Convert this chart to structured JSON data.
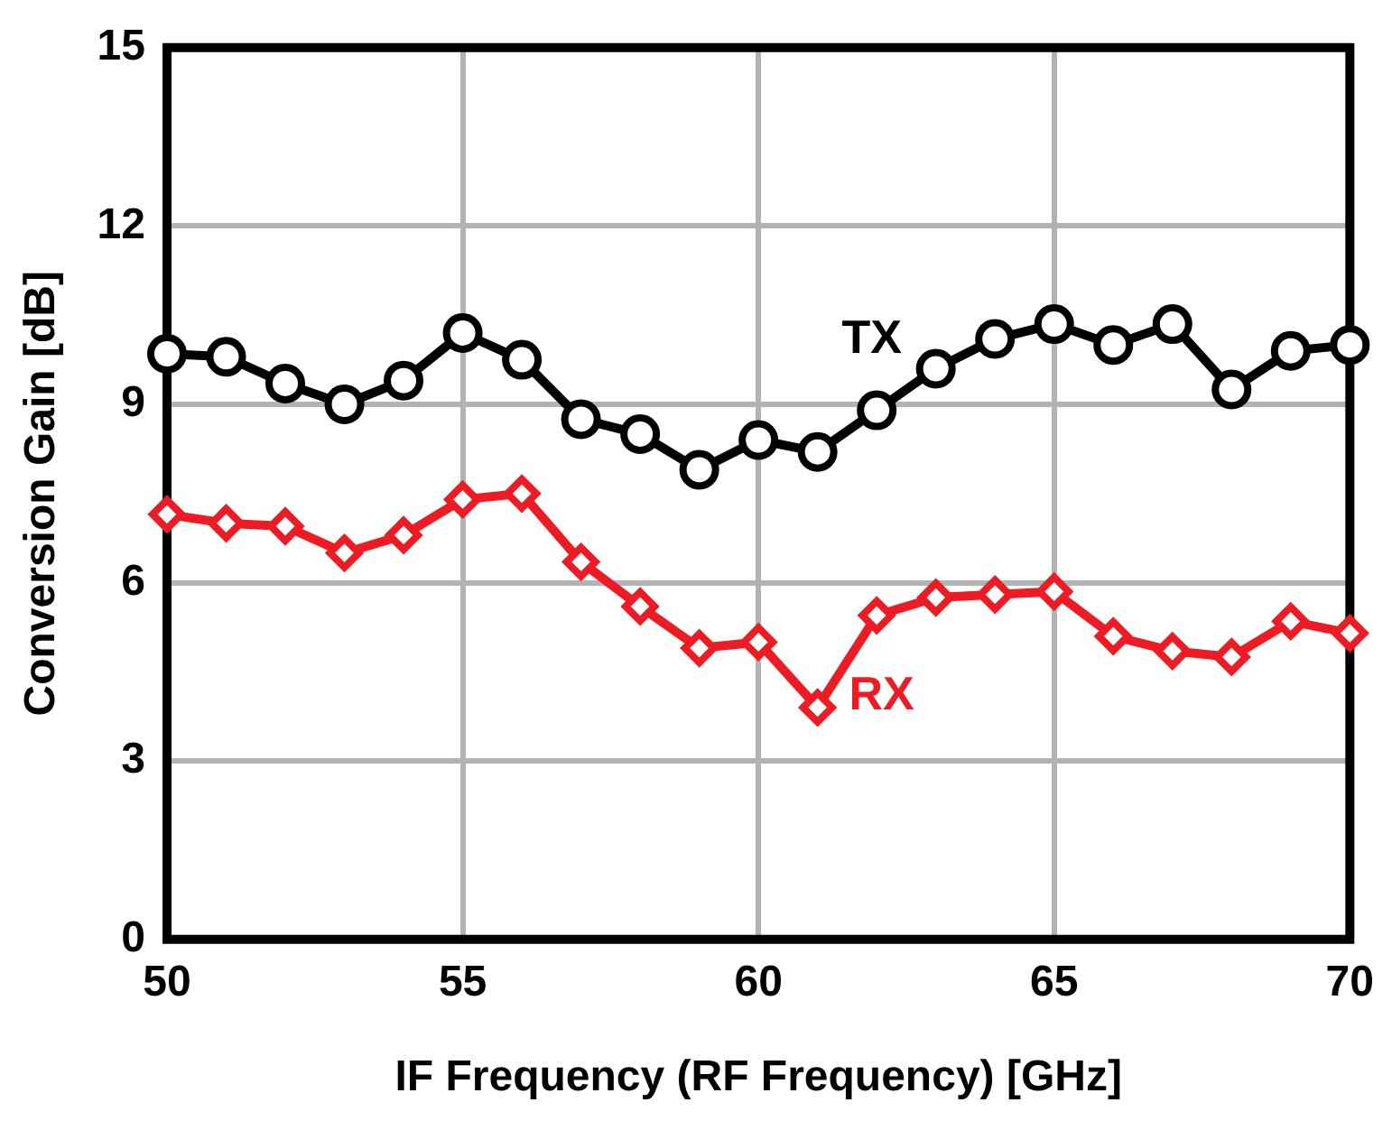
{
  "chart_data": {
    "type": "line",
    "xlabel": "IF Frequency (RF Frequency) [GHz]",
    "ylabel": "Conversion Gain [dB]",
    "x": [
      50,
      51,
      52,
      53,
      54,
      55,
      56,
      57,
      58,
      59,
      60,
      61,
      62,
      63,
      64,
      65,
      66,
      67,
      68,
      69,
      70
    ],
    "series": [
      {
        "name": "TX",
        "color": "#000000",
        "marker": "circle",
        "values": [
          9.85,
          9.8,
          9.35,
          9.0,
          9.4,
          10.2,
          9.75,
          8.75,
          8.5,
          7.9,
          8.4,
          8.2,
          8.9,
          9.6,
          10.1,
          10.35,
          10.0,
          10.35,
          9.25,
          9.9,
          10.0
        ]
      },
      {
        "name": "RX",
        "color": "#ed1c24",
        "marker": "diamond",
        "values": [
          7.15,
          7.0,
          6.95,
          6.5,
          6.8,
          7.4,
          7.5,
          6.35,
          5.6,
          4.9,
          5.0,
          3.9,
          5.45,
          5.75,
          5.8,
          5.85,
          5.1,
          4.85,
          4.75,
          5.35,
          5.15
        ]
      }
    ],
    "xlim": [
      50,
      70
    ],
    "xticks": [
      50,
      55,
      60,
      65,
      70
    ],
    "ylim": [
      0,
      15
    ],
    "yticks": [
      0,
      3,
      6,
      9,
      12,
      15
    ],
    "grid": true,
    "legend": false
  }
}
